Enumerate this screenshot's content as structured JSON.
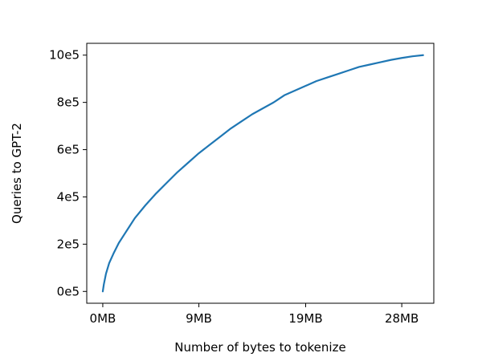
{
  "chart_data": {
    "type": "line",
    "title": "",
    "xlabel": "Number of bytes to tokenize",
    "ylabel": "Queries to GPT-2",
    "xlim": [
      -1.5,
      31.0
    ],
    "ylim": [
      -0.5,
      10.5
    ],
    "xticks": [
      {
        "value": 0,
        "label": "0MB"
      },
      {
        "value": 9,
        "label": "9MB"
      },
      {
        "value": 19,
        "label": "19MB"
      },
      {
        "value": 28,
        "label": "28MB"
      }
    ],
    "yticks": [
      {
        "value": 0,
        "label": "0e5"
      },
      {
        "value": 2,
        "label": "2e5"
      },
      {
        "value": 4,
        "label": "4e5"
      },
      {
        "value": 6,
        "label": "6e5"
      },
      {
        "value": 8,
        "label": "8e5"
      },
      {
        "value": 10,
        "label": "10e5"
      }
    ],
    "grid": false,
    "series": [
      {
        "color": "#1f77b4",
        "x": [
          0,
          0.1,
          0.3,
          0.6,
          1.0,
          1.5,
          2.0,
          2.5,
          3.0,
          4.0,
          5.0,
          6.0,
          7.0,
          8.0,
          9.0,
          10.0,
          11.0,
          12.0,
          13.0,
          14.0,
          15.0,
          16.0,
          17.0,
          18.0,
          19.0,
          20.0,
          21.0,
          22.0,
          23.0,
          24.0,
          25.0,
          26.0,
          27.0,
          28.0,
          29.0,
          30.0
        ],
        "y": [
          0.0,
          0.3,
          0.75,
          1.2,
          1.6,
          2.05,
          2.4,
          2.75,
          3.1,
          3.65,
          4.15,
          4.6,
          5.05,
          5.45,
          5.85,
          6.2,
          6.55,
          6.9,
          7.2,
          7.5,
          7.75,
          8.0,
          8.3,
          8.5,
          8.7,
          8.9,
          9.05,
          9.2,
          9.35,
          9.5,
          9.6,
          9.7,
          9.8,
          9.88,
          9.95,
          10.0
        ]
      }
    ]
  }
}
